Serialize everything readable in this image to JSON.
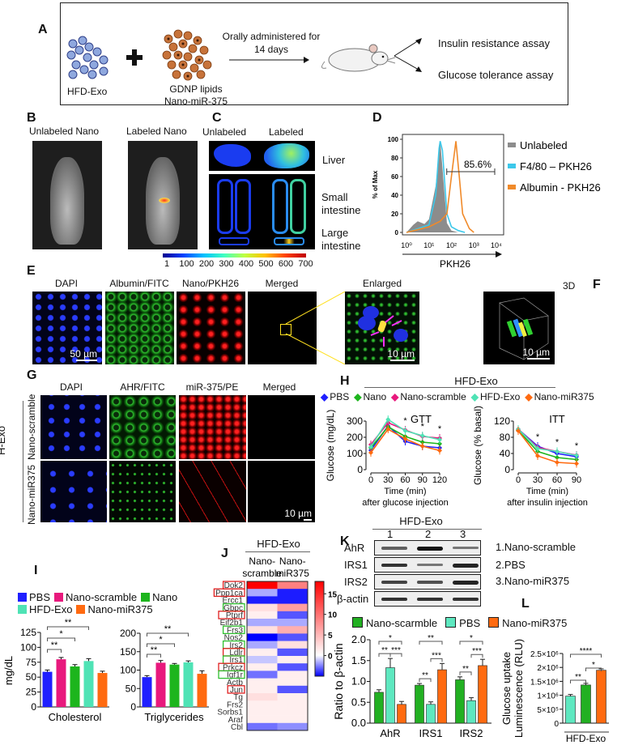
{
  "panel_a": {
    "label": "A",
    "hfd_exo": "HFD-Exo",
    "gdnp_line1": "GDNP lipids",
    "gdnp_line2": "Nano-miR-375",
    "arrow_line1": "Orally administered for",
    "arrow_line2": "14 days",
    "assay_1": "Insulin resistance assay",
    "assay_2": "Glucose tolerance assay",
    "icons": [
      "exosome-cluster-icon",
      "plus-icon",
      "nanoparticle-cluster-icon",
      "arrow-right-icon",
      "mouse-icon"
    ]
  },
  "panel_b": {
    "label": "B",
    "title_1": "Unlabeled  Nano",
    "title_2": "Labeled Nano"
  },
  "panel_c": {
    "label": "C",
    "col_1": "Unlabeled",
    "col_2": "Labeled",
    "row_liver": "Liver",
    "row_small_1": "Small",
    "row_small_2": "intestine",
    "row_large_1": "Large",
    "row_large_2": "intestine",
    "colorbar_ticks": [
      "1",
      "100",
      "200",
      "300",
      "400",
      "500",
      "600",
      "700"
    ]
  },
  "panel_d": {
    "label": "D"
  },
  "panel_e": {
    "label": "E",
    "titles": [
      "DAPI",
      "Albumin/FITC",
      "Nano/PKH26",
      "Merged",
      "Enlarged"
    ],
    "scalebar_1": "50 µm",
    "scalebar_2": "10 µm"
  },
  "panel_f": {
    "label": "F",
    "title": "3D",
    "scalebar": "10 µm"
  },
  "panel_g": {
    "label": "G",
    "titles": [
      "DAPI",
      "AHR/FITC",
      "miR-375/PE",
      "Merged"
    ],
    "group": "H-Exo",
    "rows": [
      "Nano-scramble",
      "Nano-miR375"
    ],
    "scalebar": "10 µm"
  },
  "panel_h": {
    "label": "H",
    "group": "HFD-Exo",
    "legend": [
      "PBS",
      "Nano",
      "Nano-scramble",
      "HFD-Exo",
      "Nano-miR375"
    ]
  },
  "panel_i": {
    "label": "I",
    "legend": [
      "PBS",
      "Nano-scramble",
      "Nano",
      "HFD-Exo",
      "Nano-miR375"
    ]
  },
  "panel_j": {
    "label": "J",
    "group": "HFD-Exo"
  },
  "panel_k": {
    "label": "K",
    "group": "HFD-Exo",
    "lanes": [
      "1",
      "2",
      "3"
    ],
    "blot_rows": [
      "AhR",
      "IRS1",
      "IRS2",
      "β-actin"
    ],
    "band_intensity": [
      [
        0.5,
        1.0,
        0.35
      ],
      [
        0.8,
        0.35,
        0.9
      ],
      [
        0.7,
        0.6,
        0.9
      ],
      [
        0.8,
        0.8,
        0.8
      ]
    ],
    "lane_key": [
      "1.Nano-scramble",
      "2.PBS",
      "3.Nano-miR375"
    ],
    "legend": [
      "Nano-scarmble",
      "PBS",
      "Nano-miR375"
    ]
  },
  "panel_l": {
    "label": "L"
  },
  "colors": {
    "PBS": "#1f1fff",
    "Nano-scramble": "#e8197d",
    "Nano": "#1db51d",
    "HFD-Exo": "#4fe3b5",
    "Nano-miR375": "#ff6a10",
    "Unlabeled": "#8c8c8c",
    "F4/80": "#3cc8ea"
  },
  "chart_data": [
    {
      "id": "D",
      "type": "area",
      "xlabel": "PKH26",
      "ylabel": "% of Max",
      "x_scale": "log",
      "xlim": [
        0,
        4
      ],
      "x_ticks": [
        "10⁰",
        "10¹",
        "10²",
        "10³",
        "10⁴"
      ],
      "ylim": [
        0,
        100
      ],
      "y_ticks": [
        "0",
        "20",
        "40",
        "60",
        "80",
        "100"
      ],
      "legend_position": "right",
      "gate_label": "85.6%",
      "gate_range_log10": [
        1.9,
        4
      ],
      "series": [
        {
          "name": "Unlabeled",
          "color": "#8c8c8c",
          "fill": true,
          "points_log10x": [
            [
              0,
              0
            ],
            [
              0.3,
              8
            ],
            [
              0.5,
              12
            ],
            [
              0.8,
              9
            ],
            [
              1.0,
              14
            ],
            [
              1.3,
              50
            ],
            [
              1.5,
              98
            ],
            [
              1.6,
              70
            ],
            [
              1.8,
              10
            ],
            [
              2.0,
              2
            ],
            [
              2.3,
              0
            ]
          ]
        },
        {
          "name": "F4/80 – PKH26",
          "color": "#3cc8ea",
          "fill": false,
          "points_log10x": [
            [
              0,
              0
            ],
            [
              0.5,
              4
            ],
            [
              1.0,
              8
            ],
            [
              1.3,
              40
            ],
            [
              1.45,
              90
            ],
            [
              1.5,
              98
            ],
            [
              1.6,
              88
            ],
            [
              1.8,
              20
            ],
            [
              2.0,
              6
            ],
            [
              2.3,
              2
            ],
            [
              2.6,
              0
            ]
          ]
        },
        {
          "name": "Albumin  - PKH26",
          "color": "#f08a2a",
          "fill": false,
          "points_log10x": [
            [
              0,
              0
            ],
            [
              0.5,
              3
            ],
            [
              1.0,
              6
            ],
            [
              1.5,
              12
            ],
            [
              1.8,
              20
            ],
            [
              2.0,
              60
            ],
            [
              2.2,
              98
            ],
            [
              2.35,
              60
            ],
            [
              2.5,
              20
            ],
            [
              2.8,
              4
            ],
            [
              3.0,
              0
            ]
          ]
        }
      ]
    },
    {
      "id": "H-GTT",
      "type": "line",
      "title": "GTT",
      "xlabel": "Time (min)",
      "xlabel_2": "after glucose injection",
      "ylabel": "Glucose (mg/dL)",
      "x": [
        0,
        30,
        60,
        90,
        120
      ],
      "x_ticks": [
        "0",
        "30",
        "60",
        "90",
        "120"
      ],
      "ylim": [
        0,
        300
      ],
      "y_ticks": [
        "0",
        "100",
        "200",
        "300"
      ],
      "significance": [
        {
          "x": 60,
          "label": "*"
        },
        {
          "x": 90,
          "label": "*"
        },
        {
          "x": 120,
          "label": "*"
        }
      ],
      "series": [
        {
          "name": "PBS",
          "color": "#1f1fff",
          "values": [
            120,
            270,
            175,
            145,
            135
          ]
        },
        {
          "name": "Nano",
          "color": "#1db51d",
          "values": [
            135,
            265,
            205,
            170,
            160
          ]
        },
        {
          "name": "Nano-scramble",
          "color": "#e8197d",
          "values": [
            155,
            290,
            245,
            205,
            195
          ]
        },
        {
          "name": "HFD-Exo",
          "color": "#4fe3b5",
          "values": [
            140,
            310,
            240,
            210,
            185
          ]
        },
        {
          "name": "Nano-miR375",
          "color": "#ff6a10",
          "values": [
            105,
            250,
            190,
            145,
            118
          ]
        }
      ]
    },
    {
      "id": "H-ITT",
      "type": "line",
      "title": "ITT",
      "xlabel": "Time (min)",
      "xlabel_2": "after insulin injection",
      "ylabel": "Glucose (% basal)",
      "x": [
        0,
        30,
        60,
        90
      ],
      "x_ticks": [
        "0",
        "30",
        "60",
        "90"
      ],
      "ylim": [
        0,
        120
      ],
      "y_ticks": [
        "0",
        "40",
        "80",
        "120"
      ],
      "significance": [
        {
          "x": 30,
          "label": "*"
        },
        {
          "x": 60,
          "label": "*"
        },
        {
          "x": 90,
          "label": "*"
        }
      ],
      "series": [
        {
          "name": "PBS",
          "color": "#1f1fff",
          "values": [
            100,
            58,
            40,
            32
          ]
        },
        {
          "name": "Nano",
          "color": "#1db51d",
          "values": [
            97,
            45,
            30,
            25
          ]
        },
        {
          "name": "Nano-scramble",
          "color": "#e8197d",
          "values": [
            100,
            55,
            45,
            36
          ]
        },
        {
          "name": "HFD-Exo",
          "color": "#4fe3b5",
          "values": [
            100,
            52,
            45,
            35
          ]
        },
        {
          "name": "Nano-miR375",
          "color": "#ff6a10",
          "values": [
            96,
            34,
            18,
            15
          ]
        }
      ]
    },
    {
      "id": "I-Cholesterol",
      "type": "bar",
      "xlabel": "Cholesterol",
      "ylabel": "mg/dL",
      "categories": [
        "PBS",
        "Nano-scramble",
        "Nano",
        "HFD-Exo",
        "Nano-miR375"
      ],
      "colors": [
        "#1f1fff",
        "#e8197d",
        "#1db51d",
        "#4fe3b5",
        "#ff6a10"
      ],
      "values": [
        59,
        80,
        68,
        77,
        57
      ],
      "errors": [
        3,
        3,
        3,
        4,
        3
      ],
      "ylim": [
        0,
        125
      ],
      "y_ticks": [
        "0",
        "25",
        "50",
        "75",
        "100",
        "125"
      ],
      "significance": [
        {
          "from": 0,
          "to": 1,
          "label": "**"
        },
        {
          "from": 0,
          "to": 2,
          "label": "*"
        },
        {
          "from": 0,
          "to": 3,
          "label": "**"
        }
      ]
    },
    {
      "id": "I-Triglycerides",
      "type": "bar",
      "xlabel": "Triglycerides",
      "categories": [
        "PBS",
        "Nano-scramble",
        "Nano",
        "HFD-Exo",
        "Nano-miR375"
      ],
      "colors": [
        "#1f1fff",
        "#e8197d",
        "#1db51d",
        "#4fe3b5",
        "#ff6a10"
      ],
      "values": [
        81,
        120,
        115,
        121,
        90
      ],
      "errors": [
        4,
        6,
        3,
        4,
        8
      ],
      "ylim": [
        0,
        200
      ],
      "y_ticks": [
        "0",
        "50",
        "100",
        "150",
        "200"
      ],
      "significance": [
        {
          "from": 0,
          "to": 1,
          "label": "**"
        },
        {
          "from": 0,
          "to": 2,
          "label": "*"
        },
        {
          "from": 0,
          "to": 3,
          "label": "**"
        }
      ]
    },
    {
      "id": "J",
      "type": "heatmap",
      "columns": [
        "Nano-\nscramble",
        "Nano-\nmiR375"
      ],
      "column_line1": [
        "Nano-",
        "Nano-"
      ],
      "column_line2": [
        "scramble",
        "miR375"
      ],
      "rows": [
        "Dok2",
        "Ppp1ca",
        "Ercc1",
        "Gbpc",
        "Ptprf",
        "Eif2b1",
        "Frs3",
        "Nos2",
        "Irs2",
        "Ldlr",
        "Irs1",
        "Prkcz",
        "Igf1r",
        "Actb",
        "Jun",
        "Tg",
        "Frs2",
        "Sorbs1",
        "Araf",
        "Cbl"
      ],
      "row_highlight": [
        "red",
        "red",
        "",
        "green",
        "red",
        "",
        "green",
        "",
        "green",
        "red",
        "green",
        "red",
        "green",
        "",
        "red",
        "",
        "",
        "",
        "",
        ""
      ],
      "values": [
        [
          16,
          8
        ],
        [
          -1.5,
          -4
        ],
        [
          -4,
          -4
        ],
        [
          2,
          6
        ],
        [
          1,
          -3
        ],
        [
          -1.5,
          -1.5
        ],
        [
          2,
          5
        ],
        [
          -4.5,
          -3
        ],
        [
          -1.5,
          2
        ],
        [
          1,
          -3
        ],
        [
          -1,
          1
        ],
        [
          1,
          -3
        ],
        [
          -2.5,
          1
        ],
        [
          1,
          1
        ],
        [
          1,
          -3
        ],
        [
          2,
          1
        ],
        [
          1,
          1
        ],
        [
          1,
          1
        ],
        [
          1,
          1
        ],
        [
          -2.5,
          -2
        ]
      ],
      "colorbar_range": [
        -5,
        18
      ],
      "colorbar_ticks": [
        "0",
        "5",
        "10",
        "15"
      ],
      "colormap": [
        "#0000ff",
        "#ffffff",
        "#ff0000"
      ]
    },
    {
      "id": "K",
      "type": "bar",
      "ylabel": "Ratio to β-actin",
      "categories": [
        "AhR",
        "IRS1",
        "IRS2"
      ],
      "series": [
        {
          "name": "Nano-scarmble",
          "color": "#22b022",
          "values": [
            0.74,
            0.91,
            1.04
          ],
          "errors": [
            0.06,
            0.04,
            0.07
          ]
        },
        {
          "name": "PBS",
          "color": "#5ee8c0",
          "values": [
            1.33,
            0.45,
            0.54
          ],
          "errors": [
            0.22,
            0.06,
            0.07
          ]
        },
        {
          "name": "Nano-miR375",
          "color": "#ff6a10",
          "values": [
            0.45,
            1.28,
            1.38
          ],
          "errors": [
            0.07,
            0.15,
            0.15
          ]
        }
      ],
      "ylim": [
        0,
        2.0
      ],
      "y_ticks": [
        "0.0",
        "0.5",
        "1.0",
        "1.5",
        "2.0"
      ],
      "legend_position": "top",
      "significance": [
        {
          "group": 0,
          "from": 0,
          "to": 1,
          "label": "**"
        },
        {
          "group": 0,
          "from": 1,
          "to": 2,
          "label": "***"
        },
        {
          "group": 0,
          "from": 0,
          "to": 2,
          "label": "*"
        },
        {
          "group": 1,
          "from": 0,
          "to": 1,
          "label": "**"
        },
        {
          "group": 1,
          "from": 1,
          "to": 2,
          "label": "***"
        },
        {
          "group": 1,
          "from": 0,
          "to": 2,
          "label": "**"
        },
        {
          "group": 2,
          "from": 0,
          "to": 1,
          "label": "**"
        },
        {
          "group": 2,
          "from": 1,
          "to": 2,
          "label": "***"
        },
        {
          "group": 2,
          "from": 0,
          "to": 2,
          "label": "*"
        }
      ]
    },
    {
      "id": "L",
      "type": "bar",
      "xlabel": "HFD-Exo",
      "ylabel_1": "Glucose uptake",
      "ylabel_2": "Luminescence (RLU)",
      "colors": [
        "#5ee8c0",
        "#22b022",
        "#ff6a10"
      ],
      "values": [
        970000,
        1370000,
        1900000
      ],
      "errors": [
        60000,
        60000,
        50000
      ],
      "ylim": [
        0,
        2500000
      ],
      "y_ticks": [
        "0",
        "5×10⁵",
        "1×10⁶",
        "1.5×10⁶",
        "2×10⁶",
        "2.5×10⁶"
      ],
      "significance": [
        {
          "from": 0,
          "to": 1,
          "label": "**"
        },
        {
          "from": 1,
          "to": 2,
          "label": "*"
        },
        {
          "from": 0,
          "to": 2,
          "label": "****"
        }
      ]
    }
  ]
}
